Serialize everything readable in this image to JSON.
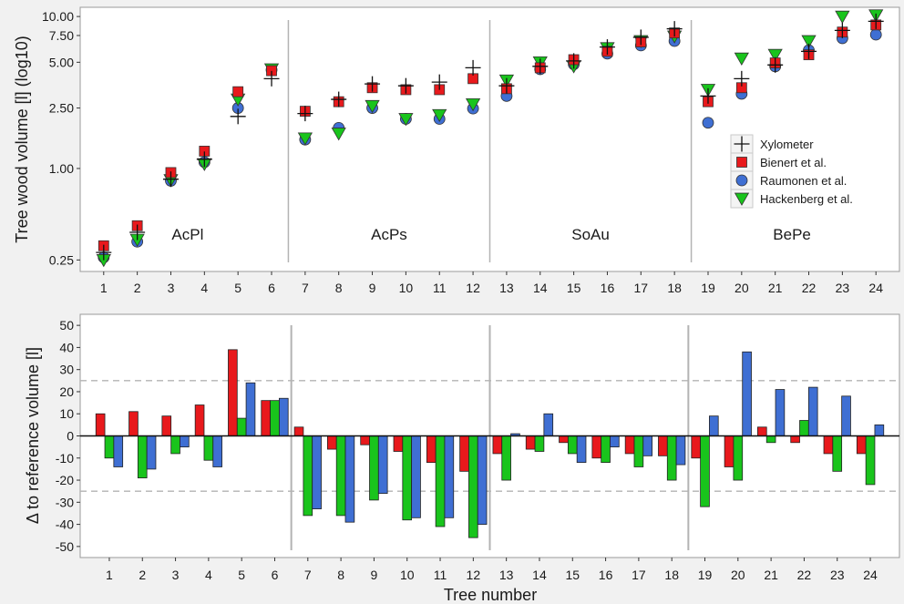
{
  "chart_data": [
    {
      "type": "scatter",
      "ylabel": "Tree wood volume [l] (log10)",
      "xlabel": "",
      "yscale": "log",
      "ylim": [
        0.21,
        11.5
      ],
      "xlim": [
        0.3,
        24.7
      ],
      "x_ticks": [
        "1",
        "2",
        "3",
        "4",
        "5",
        "6",
        "7",
        "8",
        "9",
        "10",
        "11",
        "12",
        "13",
        "14",
        "15",
        "16",
        "17",
        "18",
        "19",
        "20",
        "21",
        "22",
        "23",
        "24"
      ],
      "y_ticks": [
        0.25,
        1.0,
        2.5,
        5.0,
        7.5,
        10.0
      ],
      "y_tick_labels": [
        "0.25",
        "1.00",
        "2.50",
        "5.00",
        "7.50",
        "10.00"
      ],
      "groups": [
        {
          "label": "AcPl",
          "from": 1,
          "to": 6
        },
        {
          "label": "AcPs",
          "from": 7,
          "to": 12
        },
        {
          "label": "SoAu",
          "from": 13,
          "to": 18
        },
        {
          "label": "BePe",
          "from": 19,
          "to": 24
        }
      ],
      "legend_position": "right, inside",
      "series": [
        {
          "name": "Xylometer",
          "marker": "plus",
          "color": "#111111",
          "values": [
            0.28,
            0.38,
            0.85,
            1.15,
            2.2,
            3.9,
            2.3,
            2.85,
            3.6,
            3.5,
            3.7,
            4.6,
            3.5,
            4.7,
            5.1,
            6.3,
            7.3,
            8.3,
            3.0,
            3.9,
            4.8,
            5.9,
            8.1,
            9.3
          ]
        },
        {
          "name": "Bienert et al.",
          "marker": "square",
          "color": "#e8191c",
          "values": [
            0.31,
            0.42,
            0.94,
            1.3,
            3.2,
            4.4,
            2.38,
            2.75,
            3.4,
            3.3,
            3.3,
            3.9,
            3.35,
            4.6,
            5.2,
            5.9,
            6.8,
            7.8,
            2.75,
            3.4,
            4.95,
            5.6,
            7.9,
            8.8
          ]
        },
        {
          "name": "Raumonen et al.",
          "marker": "circle",
          "color": "#3f6fd3",
          "values": [
            0.26,
            0.33,
            0.83,
            1.1,
            2.5,
            4.45,
            1.55,
            1.85,
            2.5,
            2.12,
            2.12,
            2.48,
            3.0,
            4.5,
            4.85,
            5.7,
            6.45,
            6.9,
            2.0,
            3.1,
            4.7,
            6.0,
            7.2,
            7.6
          ]
        },
        {
          "name": "Hackenberg et al.",
          "marker": "triangle-down",
          "color": "#19c41c",
          "values": [
            0.25,
            0.34,
            0.84,
            1.07,
            2.85,
            4.5,
            1.58,
            1.7,
            2.58,
            2.12,
            2.25,
            2.65,
            3.8,
            5.0,
            4.7,
            6.2,
            6.9,
            7.4,
            3.3,
            5.3,
            5.6,
            6.9,
            10.0,
            10.2
          ]
        }
      ]
    },
    {
      "type": "bar",
      "ylabel": "Δ to reference volume [l]",
      "xlabel": "Tree number",
      "ylim": [
        -55,
        55
      ],
      "categories": [
        "1",
        "2",
        "3",
        "4",
        "5",
        "6",
        "7",
        "8",
        "9",
        "10",
        "11",
        "12",
        "13",
        "14",
        "15",
        "16",
        "17",
        "18",
        "19",
        "20",
        "21",
        "22",
        "23",
        "24"
      ],
      "y_ticks": [
        -50,
        -40,
        -30,
        -20,
        -10,
        0,
        10,
        20,
        30,
        40,
        50
      ],
      "reference_lines": [
        -25,
        25
      ],
      "series": [
        {
          "name": "Bienert et al.",
          "color": "#e8191c",
          "values": [
            10,
            11,
            9,
            14,
            39,
            16,
            4,
            -6,
            -4,
            -7,
            -12,
            -16,
            -8,
            -6,
            -3,
            -10,
            -8,
            -9,
            -10,
            -14,
            4,
            -3,
            -8,
            -8
          ]
        },
        {
          "name": "Hackenberg et al.",
          "color": "#19c41c",
          "values": [
            -10,
            -19,
            -8,
            -11,
            8,
            16,
            -36,
            -36,
            -29,
            -38,
            -41,
            -46,
            -20,
            -7,
            -8,
            -12,
            -14,
            -20,
            -32,
            -20,
            -3,
            7,
            -16,
            -22
          ]
        },
        {
          "name": "Raumonen et al.",
          "color": "#3f6fd3",
          "values": [
            -14,
            -15,
            -5,
            -14,
            24,
            17,
            -33,
            -39,
            -26,
            -37,
            -37,
            -40,
            1,
            10,
            -12,
            -5,
            -9,
            -13,
            9,
            38,
            21,
            22,
            18,
            5
          ]
        }
      ]
    }
  ]
}
